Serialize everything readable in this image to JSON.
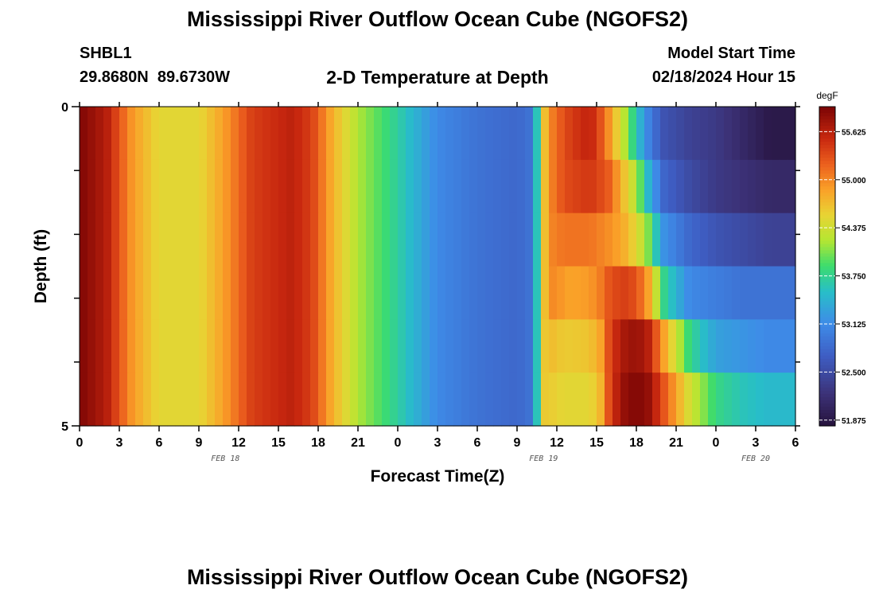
{
  "title": "Mississippi River Outflow Ocean Cube (NGOFS2)",
  "station": {
    "id": "SHBL1",
    "coords": "29.8680N  89.6730W"
  },
  "subtitle": "2-D Temperature at Depth",
  "model_start": {
    "label": "Model Start Time",
    "value": "02/18/2024 Hour 15"
  },
  "footer_title": "Mississippi River Outflow Ocean Cube (NGOFS2)",
  "chart_data": {
    "type": "heatmap",
    "title": "2-D Temperature at Depth",
    "xlabel": "Forecast Time(Z)",
    "ylabel": "Depth (ft)",
    "x_tick_labels": [
      "0",
      "3",
      "6",
      "9",
      "12",
      "15",
      "18",
      "21",
      "0",
      "3",
      "6",
      "9",
      "12",
      "15",
      "18",
      "21",
      "0",
      "3",
      "6"
    ],
    "x_range_hours": [
      0,
      54
    ],
    "date_labels": [
      {
        "label": "FEB 18",
        "hour": 11
      },
      {
        "label": "FEB 19",
        "hour": 35
      },
      {
        "label": "FEB 20",
        "hour": 51
      }
    ],
    "y_tick_labels": [
      "0",
      "5"
    ],
    "ylim": [
      0,
      5
    ],
    "y_inverted": true,
    "colorbar": {
      "unit": "degF",
      "ticks": [
        "55.625",
        "55.000",
        "54.375",
        "53.750",
        "53.125",
        "52.500",
        "51.875"
      ],
      "range": [
        51.8,
        55.95
      ]
    },
    "depth_layers": [
      0,
      1,
      2,
      3,
      4,
      5
    ],
    "temperature_profiles": [
      {
        "depth_layer": 0,
        "values": [
          [
            0,
            55.92
          ],
          [
            2,
            55.65
          ],
          [
            4,
            54.9
          ],
          [
            6,
            54.5
          ],
          [
            9,
            54.5
          ],
          [
            11,
            54.9
          ],
          [
            13,
            55.4
          ],
          [
            16,
            55.6
          ],
          [
            17.5,
            55.4
          ],
          [
            19,
            54.8
          ],
          [
            21,
            54.2
          ],
          [
            24,
            53.7
          ],
          [
            27,
            53.1
          ],
          [
            30,
            52.9
          ],
          [
            33,
            52.8
          ],
          [
            34,
            52.9
          ],
          [
            34.5,
            53.6
          ],
          [
            35,
            54.6
          ],
          [
            35.5,
            55.0
          ],
          [
            36.5,
            55.3
          ],
          [
            37,
            55.4
          ],
          [
            38.5,
            55.6
          ],
          [
            39.5,
            55.2
          ],
          [
            40,
            54.9
          ],
          [
            41,
            54.3
          ],
          [
            42,
            53.6
          ],
          [
            43,
            53.0
          ],
          [
            44,
            52.6
          ],
          [
            46,
            52.4
          ],
          [
            48,
            52.3
          ],
          [
            50,
            52.1
          ],
          [
            52,
            51.9
          ],
          [
            54,
            51.9
          ]
        ]
      },
      {
        "depth_layer": 1,
        "values": [
          [
            0,
            55.92
          ],
          [
            2,
            55.65
          ],
          [
            4,
            54.9
          ],
          [
            6,
            54.5
          ],
          [
            9,
            54.5
          ],
          [
            11,
            54.9
          ],
          [
            13,
            55.4
          ],
          [
            16,
            55.6
          ],
          [
            17.5,
            55.4
          ],
          [
            19,
            54.8
          ],
          [
            21,
            54.2
          ],
          [
            24,
            53.7
          ],
          [
            27,
            53.1
          ],
          [
            30,
            52.9
          ],
          [
            33,
            52.8
          ],
          [
            34,
            52.9
          ],
          [
            34.5,
            53.6
          ],
          [
            35,
            54.6
          ],
          [
            35.5,
            55.0
          ],
          [
            36.5,
            55.3
          ],
          [
            37,
            55.35
          ],
          [
            38.5,
            55.45
          ],
          [
            39.5,
            55.3
          ],
          [
            40,
            55.2
          ],
          [
            41,
            54.7
          ],
          [
            42,
            54.2
          ],
          [
            43,
            53.4
          ],
          [
            44,
            52.8
          ],
          [
            46,
            52.5
          ],
          [
            48,
            52.3
          ],
          [
            50,
            52.2
          ],
          [
            52,
            52.1
          ],
          [
            54,
            52.1
          ]
        ]
      },
      {
        "depth_layer": 2,
        "values": [
          [
            0,
            55.92
          ],
          [
            2,
            55.65
          ],
          [
            4,
            54.9
          ],
          [
            6,
            54.5
          ],
          [
            9,
            54.5
          ],
          [
            11,
            54.9
          ],
          [
            13,
            55.4
          ],
          [
            16,
            55.6
          ],
          [
            17.5,
            55.4
          ],
          [
            19,
            54.8
          ],
          [
            21,
            54.2
          ],
          [
            24,
            53.7
          ],
          [
            27,
            53.1
          ],
          [
            30,
            52.9
          ],
          [
            33,
            52.8
          ],
          [
            34,
            52.9
          ],
          [
            34.5,
            53.6
          ],
          [
            35,
            54.6
          ],
          [
            35.5,
            55.0
          ],
          [
            36.5,
            55.1
          ],
          [
            37,
            55.1
          ],
          [
            38.5,
            55.1
          ],
          [
            39.5,
            55.0
          ],
          [
            40,
            54.95
          ],
          [
            41,
            54.8
          ],
          [
            42,
            54.5
          ],
          [
            43,
            54.0
          ],
          [
            44,
            53.2
          ],
          [
            46,
            52.8
          ],
          [
            48,
            52.6
          ],
          [
            50,
            52.5
          ],
          [
            52,
            52.4
          ],
          [
            54,
            52.4
          ]
        ]
      },
      {
        "depth_layer": 3,
        "values": [
          [
            0,
            55.92
          ],
          [
            2,
            55.65
          ],
          [
            4,
            54.9
          ],
          [
            6,
            54.5
          ],
          [
            9,
            54.5
          ],
          [
            11,
            54.9
          ],
          [
            13,
            55.4
          ],
          [
            16,
            55.6
          ],
          [
            17.5,
            55.4
          ],
          [
            19,
            54.8
          ],
          [
            21,
            54.2
          ],
          [
            24,
            53.7
          ],
          [
            27,
            53.1
          ],
          [
            30,
            52.9
          ],
          [
            33,
            52.8
          ],
          [
            34,
            52.9
          ],
          [
            34.5,
            53.6
          ],
          [
            35,
            54.6
          ],
          [
            35.5,
            55.0
          ],
          [
            36.5,
            54.9
          ],
          [
            37,
            54.85
          ],
          [
            38.5,
            54.9
          ],
          [
            39.5,
            55.1
          ],
          [
            40,
            55.3
          ],
          [
            41,
            55.4
          ],
          [
            42,
            55.3
          ],
          [
            43,
            54.8
          ],
          [
            44,
            53.8
          ],
          [
            46,
            53.1
          ],
          [
            48,
            53.0
          ],
          [
            50,
            52.9
          ],
          [
            52,
            52.9
          ],
          [
            54,
            52.9
          ]
        ]
      },
      {
        "depth_layer": 4,
        "values": [
          [
            0,
            55.92
          ],
          [
            2,
            55.65
          ],
          [
            4,
            54.9
          ],
          [
            6,
            54.5
          ],
          [
            9,
            54.5
          ],
          [
            11,
            54.9
          ],
          [
            13,
            55.4
          ],
          [
            16,
            55.6
          ],
          [
            17.5,
            55.4
          ],
          [
            19,
            54.8
          ],
          [
            21,
            54.2
          ],
          [
            24,
            53.7
          ],
          [
            27,
            53.1
          ],
          [
            30,
            52.9
          ],
          [
            33,
            52.8
          ],
          [
            34,
            52.9
          ],
          [
            34.5,
            53.6
          ],
          [
            35,
            54.6
          ],
          [
            35.5,
            54.7
          ],
          [
            36.5,
            54.6
          ],
          [
            37,
            54.6
          ],
          [
            38.5,
            54.65
          ],
          [
            39.5,
            54.9
          ],
          [
            40,
            55.4
          ],
          [
            41,
            55.7
          ],
          [
            42,
            55.8
          ],
          [
            43,
            55.6
          ],
          [
            44,
            54.9
          ],
          [
            46,
            53.8
          ],
          [
            48,
            53.3
          ],
          [
            50,
            53.2
          ],
          [
            52,
            53.1
          ],
          [
            54,
            53.1
          ]
        ]
      },
      {
        "depth_layer": 5,
        "values": [
          [
            0,
            55.92
          ],
          [
            2,
            55.65
          ],
          [
            4,
            54.9
          ],
          [
            6,
            54.5
          ],
          [
            9,
            54.5
          ],
          [
            11,
            54.9
          ],
          [
            13,
            55.4
          ],
          [
            16,
            55.6
          ],
          [
            17.5,
            55.4
          ],
          [
            19,
            54.8
          ],
          [
            21,
            54.2
          ],
          [
            24,
            53.7
          ],
          [
            27,
            53.1
          ],
          [
            30,
            52.9
          ],
          [
            33,
            52.8
          ],
          [
            34,
            52.9
          ],
          [
            34.5,
            53.6
          ],
          [
            35,
            54.6
          ],
          [
            35.5,
            54.6
          ],
          [
            36.5,
            54.5
          ],
          [
            37,
            54.5
          ],
          [
            38.5,
            54.5
          ],
          [
            39.5,
            54.8
          ],
          [
            40,
            55.4
          ],
          [
            41,
            55.8
          ],
          [
            42,
            55.92
          ],
          [
            43,
            55.8
          ],
          [
            44,
            55.3
          ],
          [
            46,
            54.4
          ],
          [
            48,
            53.8
          ],
          [
            50,
            53.6
          ],
          [
            52,
            53.5
          ],
          [
            54,
            53.5
          ]
        ]
      }
    ]
  }
}
